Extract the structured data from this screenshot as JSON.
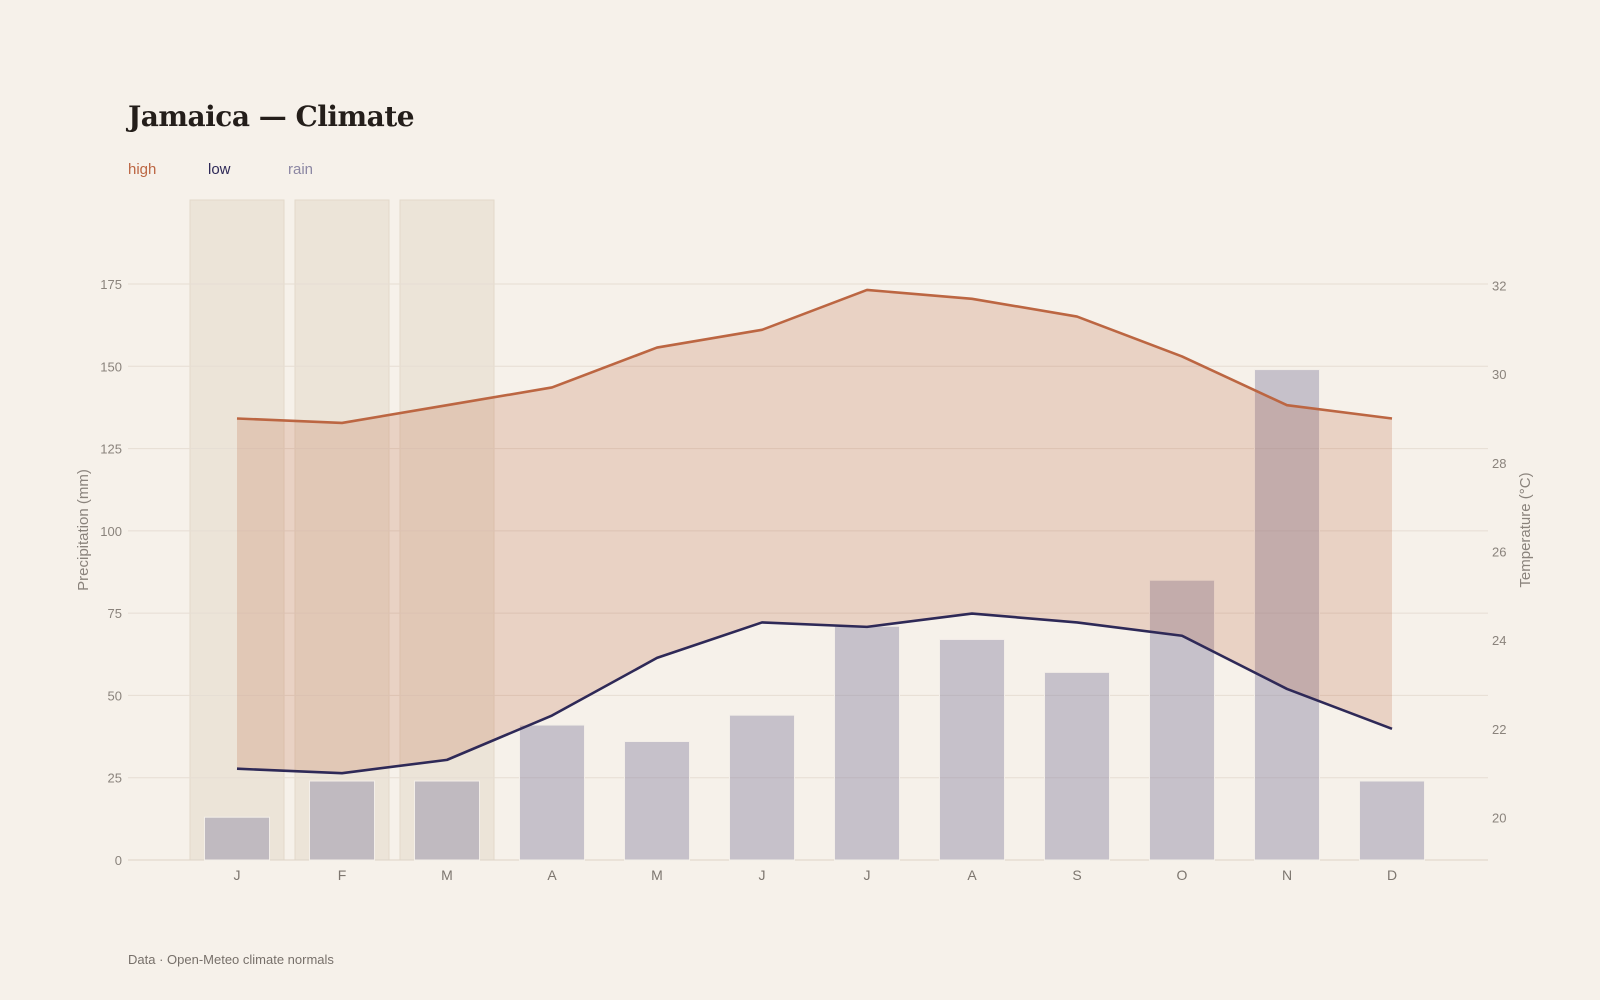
{
  "title": "Jamaica — Climate",
  "legend": [
    {
      "label": "high",
      "color": "#bc6642"
    },
    {
      "label": "low",
      "color": "#2e2957"
    },
    {
      "label": "rain",
      "color": "#8c87a3"
    }
  ],
  "footer": "Data · Open-Meteo climate normals",
  "chart_data": {
    "type": "bar+line",
    "title": "Jamaica — Climate",
    "categories": [
      "J",
      "F",
      "M",
      "A",
      "M",
      "J",
      "J",
      "A",
      "S",
      "O",
      "N",
      "D"
    ],
    "highlighted_months": [
      "J",
      "F",
      "M"
    ],
    "series": [
      {
        "name": "rain",
        "axis": "left",
        "type": "bar",
        "color": "#8c87a3",
        "values": [
          13,
          24,
          24,
          41,
          36,
          44,
          71,
          67,
          57,
          85,
          149,
          24
        ]
      },
      {
        "name": "high",
        "axis": "right",
        "type": "line",
        "color": "#bc6642",
        "values": [
          29.0,
          28.9,
          29.3,
          29.7,
          30.6,
          31.0,
          31.9,
          31.7,
          31.3,
          30.4,
          29.3,
          29.0
        ]
      },
      {
        "name": "low",
        "axis": "right",
        "type": "line",
        "color": "#2e2957",
        "values": [
          21.1,
          21.0,
          21.3,
          22.3,
          23.6,
          24.4,
          24.3,
          24.6,
          24.4,
          24.1,
          22.9,
          22.0
        ]
      }
    ],
    "y_left": {
      "label": "Precipitation (mm)",
      "ticks": [
        0,
        25,
        50,
        75,
        100,
        125,
        150,
        175
      ],
      "range": [
        0,
        175
      ]
    },
    "y_right": {
      "label": "Temperature (°C)",
      "ticks": [
        20,
        22,
        24,
        26,
        28,
        30,
        32
      ],
      "range": [
        19,
        32
      ]
    },
    "grid": true
  }
}
